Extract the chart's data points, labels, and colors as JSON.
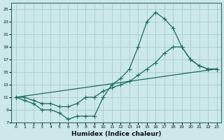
{
  "xlabel": "Humidex (Indice chaleur)",
  "bg_color": "#cce8e8",
  "grid_color": "#aacccc",
  "line_color": "#1a6b5e",
  "xlim": [
    -0.5,
    23.5
  ],
  "ylim": [
    7,
    26
  ],
  "xticks": [
    0,
    1,
    2,
    3,
    4,
    5,
    6,
    7,
    8,
    9,
    10,
    11,
    12,
    13,
    14,
    15,
    16,
    17,
    18,
    19,
    20,
    21,
    22,
    23
  ],
  "yticks": [
    7,
    9,
    11,
    13,
    15,
    17,
    19,
    21,
    23,
    25
  ],
  "line1_x": [
    0,
    1,
    2,
    3,
    4,
    5,
    6,
    7,
    8,
    9,
    10,
    11,
    12,
    13,
    14,
    15,
    16,
    17,
    18,
    19,
    20,
    21,
    22,
    23
  ],
  "line1_y": [
    11,
    10.5,
    10,
    9,
    9,
    8.5,
    7.5,
    8,
    8,
    8,
    11,
    13,
    14,
    15.5,
    19,
    23,
    24.5,
    23.5,
    22,
    19,
    17,
    16,
    15.5,
    15.5
  ],
  "line2_x": [
    0,
    1,
    2,
    3,
    4,
    5,
    6,
    7,
    8,
    9,
    10,
    11,
    12,
    13,
    14,
    15,
    16,
    17,
    18,
    19,
    20,
    21,
    22,
    23
  ],
  "line2_y": [
    11,
    11,
    10.5,
    10,
    10,
    9.5,
    9.5,
    10,
    11,
    11,
    12,
    12.5,
    13,
    13.5,
    14.5,
    15.5,
    16.5,
    18,
    19,
    19,
    17,
    16,
    15.5,
    15.5
  ],
  "line3_x": [
    0,
    23
  ],
  "line3_y": [
    11,
    15.5
  ],
  "marker": "+",
  "markersize": 4,
  "linewidth": 0.9,
  "tick_fontsize": 4.5,
  "xlabel_fontsize": 6.5
}
